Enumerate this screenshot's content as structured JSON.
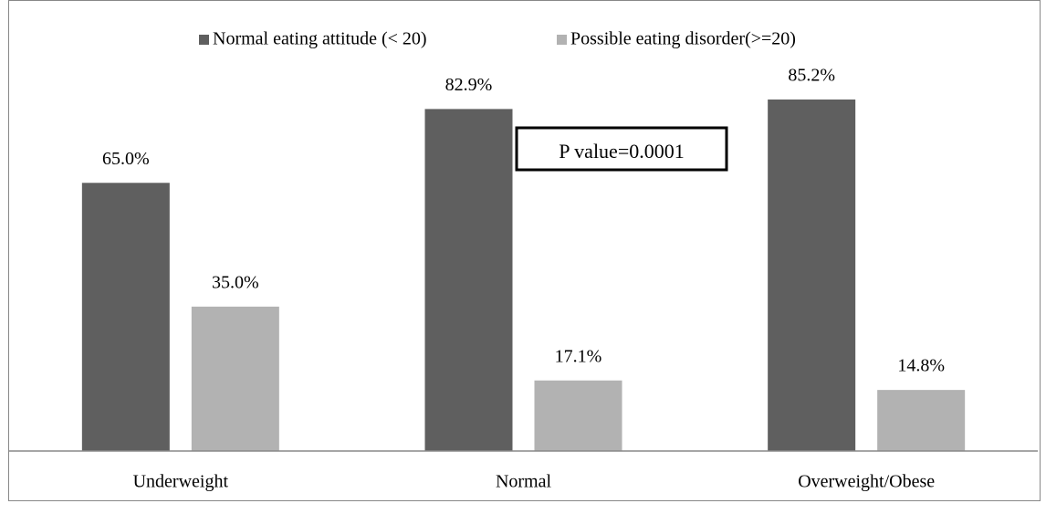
{
  "chart_data": {
    "type": "bar",
    "annotations": [
      "P value=0.0001"
    ],
    "categories": [
      "Underweight",
      "Normal",
      "Overweight/Obese"
    ],
    "series": [
      {
        "name": "Normal eating attitude (< 20)",
        "color": "#5f5f5f",
        "values": [
          65.0,
          82.9,
          85.2
        ],
        "value_labels": [
          "65.0%",
          "82.9%",
          "85.2%"
        ]
      },
      {
        "name": "Possible eating disorder(>=20)",
        "color": "#b2b2b2",
        "values": [
          35.0,
          17.1,
          14.8
        ],
        "value_labels": [
          "35.0%",
          "17.1%",
          "14.8%"
        ]
      }
    ],
    "legend": "top"
  }
}
